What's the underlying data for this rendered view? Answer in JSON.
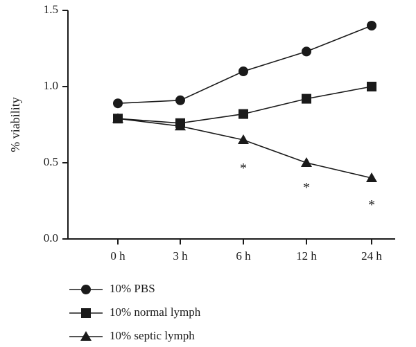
{
  "chart_data": {
    "type": "line",
    "title": "",
    "xlabel": "",
    "ylabel": "% viability",
    "categories": [
      "0 h",
      "3 h",
      "6 h",
      "12 h",
      "24 h"
    ],
    "ylim": [
      0,
      1.5
    ],
    "yticks": [
      0.0,
      0.5,
      1.0,
      1.5
    ],
    "ytick_labels": [
      "0.0",
      "0.5",
      "1.0",
      "1.5"
    ],
    "grid": false,
    "legend_position": "bottom-left",
    "series": [
      {
        "name": "10% PBS",
        "marker": "circle",
        "values": [
          0.89,
          0.91,
          1.1,
          1.23,
          1.4
        ]
      },
      {
        "name": "10% normal lymph",
        "marker": "square",
        "values": [
          0.79,
          0.76,
          0.82,
          0.92,
          1.0
        ]
      },
      {
        "name": "10% septic lymph",
        "marker": "triangle",
        "values": [
          0.79,
          0.74,
          0.65,
          0.5,
          0.4
        ]
      }
    ],
    "annotations": [
      {
        "text": "*",
        "category": "6 h"
      },
      {
        "text": "*",
        "category": "12 h"
      },
      {
        "text": "*",
        "category": "24 h"
      }
    ],
    "colors": {
      "ink": "#1a1a1a"
    }
  }
}
